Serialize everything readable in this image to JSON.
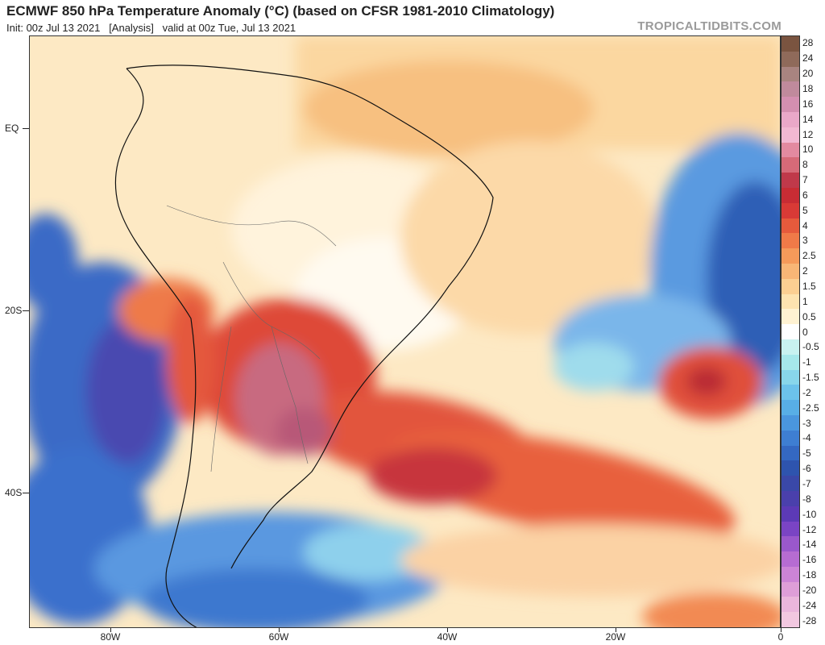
{
  "header": {
    "title": "ECMWF 850 hPa Temperature Anomaly (°C) (based on CFSR 1981-2010 Climatology)",
    "subtitle": "Init: 00z Jul 13 2021   [Analysis]   valid at 00z Tue, Jul 13 2021",
    "credit": "TROPICALTIDBITS.COM"
  },
  "axes": {
    "lat_labels": [
      "EQ",
      "20S",
      "40S"
    ],
    "lon_labels": [
      "80W",
      "60W",
      "40W",
      "20W",
      "0"
    ]
  },
  "colorbar": {
    "labels": [
      "28",
      "24",
      "20",
      "18",
      "16",
      "14",
      "12",
      "10",
      "8",
      "7",
      "6",
      "5",
      "4",
      "3",
      "2.5",
      "2",
      "1.5",
      "1",
      "0.5",
      "0",
      "-0.5",
      "-1",
      "-1.5",
      "-2",
      "-2.5",
      "-3",
      "-4",
      "-5",
      "-6",
      "-7",
      "-8",
      "-10",
      "-12",
      "-14",
      "-16",
      "-18",
      "-20",
      "-24",
      "-28"
    ],
    "colors": [
      "#7a5440",
      "#8f6a5a",
      "#a98480",
      "#c08a9c",
      "#d48fb0",
      "#eaa8c8",
      "#f2b8d2",
      "#e38aa0",
      "#d66a78",
      "#c0394a",
      "#c82c34",
      "#d93a36",
      "#e65a3c",
      "#f07a48",
      "#f59a5a",
      "#f8b676",
      "#fbcf92",
      "#fde3b0",
      "#fff2d2",
      "#ffffff",
      "#c8f2f0",
      "#a6e8ea",
      "#88d6ea",
      "#6cc2ea",
      "#58aee6",
      "#4a96de",
      "#3e7ed2",
      "#3468c2",
      "#2e54ae",
      "#3a48a8",
      "#4a40ac",
      "#5c3ab6",
      "#7a44c4",
      "#9a58cc",
      "#b66cd2",
      "#cc84d6",
      "#de9ed8",
      "#eab6dc",
      "#f2c8e0"
    ]
  },
  "legend_tags": {
    "map_region": "South America / South Atlantic",
    "palette": "warm anomaly over Paraguay / southern Brazil / Uruguay; cold anomaly over SE Pacific and Patagonia"
  }
}
